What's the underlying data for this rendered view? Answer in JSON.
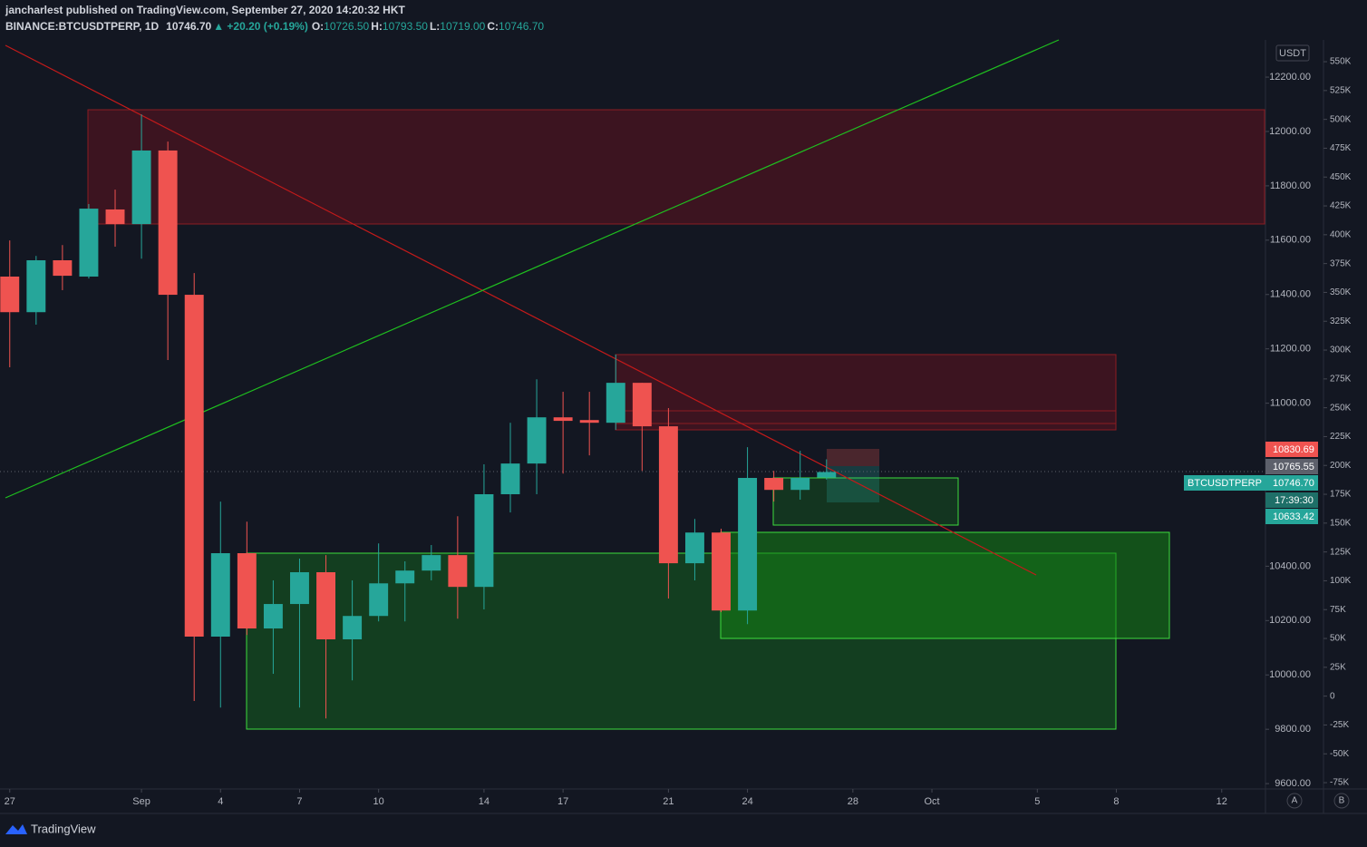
{
  "header": {
    "publisher": "jancharlest published on TradingView.com, September 27, 2020 14:20:32 HKT",
    "symbol": "BINANCE:BTCUSDTPERP, 1D",
    "last": "10746.70",
    "change": "▲ +20.20 (+0.19%)",
    "o_label": "O:",
    "o": "10726.50",
    "h_label": "H:",
    "h": "10793.50",
    "l_label": "L:",
    "l": "10719.00",
    "c_label": "C:",
    "c": "10746.70"
  },
  "price_labels": {
    "currency": "USDT",
    "red": "10830.69",
    "gray": "10765.55",
    "symbol": "BTCUSDTPERP",
    "last": "10746.70",
    "countdown": "17:39:30",
    "teal": "10633.42"
  },
  "scale_buttons": [
    "A",
    "B"
  ],
  "brand": "TradingView",
  "chart_data": {
    "type": "candlestick",
    "x": [
      0,
      1,
      2,
      3,
      4,
      5,
      6,
      7,
      8,
      9,
      10,
      11,
      12,
      13,
      14,
      15,
      16,
      17,
      18,
      19,
      20,
      21,
      22,
      23,
      24,
      25,
      26,
      27,
      28,
      29,
      30,
      31
    ],
    "open": [
      11466,
      11335,
      11526,
      11466,
      11713,
      11659,
      11930,
      11399,
      10141,
      10448,
      10171,
      10261,
      10378,
      10131,
      10217,
      10337,
      10384,
      10441,
      10324,
      10665,
      10778,
      10948,
      10938,
      10928,
      11075,
      10915,
      10411,
      10524,
      10237,
      10725,
      10681,
      10726.5
    ],
    "high": [
      11599,
      11542,
      11582,
      11733,
      11786,
      12063,
      11963,
      11479,
      10638,
      10564,
      10348,
      10428,
      10441,
      10348,
      10484,
      10418,
      10478,
      10584,
      10775,
      10928,
      11088,
      11042,
      11042,
      11179,
      11075,
      10982,
      10574,
      10538,
      10838,
      10751,
      10825,
      10793.5
    ],
    "low": [
      11132,
      11289,
      11416,
      11459,
      11576,
      11532,
      11159,
      9904,
      9880,
      10147,
      10004,
      9880,
      9840,
      9980,
      10197,
      10197,
      10348,
      10207,
      10241,
      10598,
      10665,
      10741,
      10808,
      10902,
      10751,
      10281,
      10348,
      10231,
      10187,
      10638,
      10645,
      10719
    ],
    "close": [
      11335,
      11526,
      11469,
      11716,
      11659,
      11930,
      11399,
      10141,
      10448,
      10171,
      10261,
      10378,
      10131,
      10217,
      10337,
      10384,
      10441,
      10324,
      10665,
      10778,
      10948,
      10935,
      10928,
      11075,
      10915,
      10411,
      10524,
      10237,
      10725,
      10681,
      10725,
      10746.7
    ],
    "up_color": "#26a69a",
    "down_color": "#ef5350",
    "xlim": [
      -0.37,
      47.66
    ],
    "xticks": [
      {
        "value": 0,
        "label": "27"
      },
      {
        "value": 5,
        "label": "Sep"
      },
      {
        "value": 8,
        "label": "4"
      },
      {
        "value": 11,
        "label": "7"
      },
      {
        "value": 14,
        "label": "10"
      },
      {
        "value": 18,
        "label": "14"
      },
      {
        "value": 21,
        "label": "17"
      },
      {
        "value": 25,
        "label": "21"
      },
      {
        "value": 28,
        "label": "24"
      },
      {
        "value": 32,
        "label": "28"
      },
      {
        "value": 35,
        "label": "Oct"
      },
      {
        "value": 39,
        "label": "5"
      },
      {
        "value": 42,
        "label": "8"
      },
      {
        "value": 46,
        "label": "12"
      }
    ],
    "ylim": [
      9587,
      12337
    ],
    "yticks": [
      {
        "value": 12200,
        "label": "12200.00"
      },
      {
        "value": 12000,
        "label": "12000.00"
      },
      {
        "value": 11800,
        "label": "11800.00"
      },
      {
        "value": 11600,
        "label": "11600.00"
      },
      {
        "value": 11400,
        "label": "11400.00"
      },
      {
        "value": 11200,
        "label": "11200.00"
      },
      {
        "value": 11000,
        "label": "11000.00"
      },
      {
        "value": 10400,
        "label": "10400.00"
      },
      {
        "value": 10200,
        "label": "10200.00"
      },
      {
        "value": 10000,
        "label": "10000.00"
      },
      {
        "value": 9800,
        "label": "9800.00"
      },
      {
        "value": 9600,
        "label": "9600.00"
      }
    ],
    "y2lim": [
      -78900,
      568900
    ],
    "y2ticks": [
      {
        "value": 550000,
        "label": "550K"
      },
      {
        "value": 525000,
        "label": "525K"
      },
      {
        "value": 500000,
        "label": "500K"
      },
      {
        "value": 475000,
        "label": "475K"
      },
      {
        "value": 450000,
        "label": "450K"
      },
      {
        "value": 425000,
        "label": "425K"
      },
      {
        "value": 400000,
        "label": "400K"
      },
      {
        "value": 375000,
        "label": "375K"
      },
      {
        "value": 350000,
        "label": "350K"
      },
      {
        "value": 325000,
        "label": "325K"
      },
      {
        "value": 300000,
        "label": "300K"
      },
      {
        "value": 275000,
        "label": "275K"
      },
      {
        "value": 250000,
        "label": "250K"
      },
      {
        "value": 225000,
        "label": "225K"
      },
      {
        "value": 200000,
        "label": "200K"
      },
      {
        "value": 175000,
        "label": "175K"
      },
      {
        "value": 150000,
        "label": "150K"
      },
      {
        "value": 125000,
        "label": "125K"
      },
      {
        "value": 100000,
        "label": "100K"
      },
      {
        "value": 75000,
        "label": "75K"
      },
      {
        "value": 50000,
        "label": "50K"
      },
      {
        "value": 25000,
        "label": "25K"
      },
      0,
      {
        "value": -25000,
        "label": "-25K"
      },
      {
        "value": -50000,
        "label": "-50K"
      },
      {
        "value": -75000,
        "label": "-75K"
      }
    ]
  }
}
